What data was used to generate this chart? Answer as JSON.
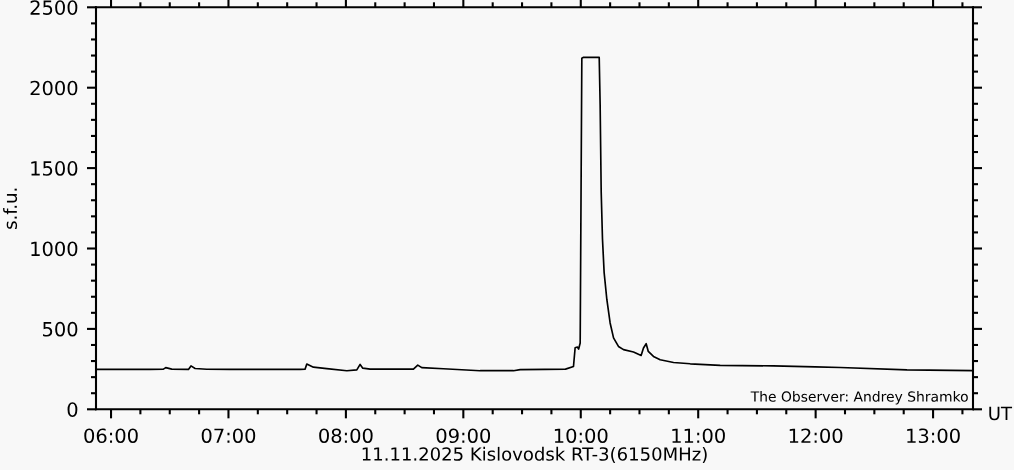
{
  "chart_data": {
    "type": "line",
    "xlabel": "11.11.2025 Kislovodsk RT-3(6150MHz)",
    "ylabel": "s.f.u.",
    "annotations": [
      "The Observer: Andrey Shramko",
      "UT"
    ],
    "x": [
      5.872,
      6.332,
      6.446,
      6.466,
      6.517,
      6.659,
      6.681,
      6.716,
      6.815,
      7.014,
      7.61,
      7.652,
      7.667,
      7.723,
      7.837,
      8.008,
      8.093,
      8.121,
      8.144,
      8.206,
      8.575,
      8.612,
      8.646,
      8.83,
      9.143,
      9.427,
      9.484,
      9.697,
      9.87,
      9.938,
      9.952,
      9.971,
      9.982,
      9.995,
      10.009,
      10.024,
      10.157,
      10.165,
      10.174,
      10.185,
      10.199,
      10.222,
      10.25,
      10.279,
      10.321,
      10.364,
      10.449,
      10.514,
      10.534,
      10.557,
      10.575,
      10.619,
      10.676,
      10.79,
      10.932,
      11.187,
      11.639,
      11.997,
      12.21,
      12.778,
      13.34
    ],
    "series": [
      {
        "color": "#000000",
        "values": [
          248,
          248,
          250,
          259,
          250,
          248,
          270,
          254,
          249,
          248,
          248,
          249,
          281,
          262,
          253,
          240,
          245,
          279,
          256,
          250,
          250,
          275,
          259,
          252,
          240,
          240,
          247,
          248,
          250,
          266,
          383,
          387,
          375,
          412,
          2183,
          2189,
          2189,
          1891,
          1350,
          1058,
          850,
          683,
          537,
          444,
          391,
          371,
          356,
          335,
          381,
          408,
          360,
          329,
          308,
          291,
          283,
          273,
          270,
          264,
          260,
          245,
          241
        ]
      }
    ],
    "xlim": [
      5.872,
      13.34
    ],
    "ylim": [
      0,
      2500
    ],
    "xticks": [
      {
        "value": 6,
        "label": "06:00"
      },
      {
        "value": 6.25,
        "label": null
      },
      {
        "value": 6.5,
        "label": null
      },
      {
        "value": 6.75,
        "label": null
      },
      {
        "value": 7,
        "label": "07:00"
      },
      {
        "value": 7.25,
        "label": null
      },
      {
        "value": 7.5,
        "label": null
      },
      {
        "value": 7.75,
        "label": null
      },
      {
        "value": 8,
        "label": "08:00"
      },
      {
        "value": 8.25,
        "label": null
      },
      {
        "value": 8.5,
        "label": null
      },
      {
        "value": 8.75,
        "label": null
      },
      {
        "value": 9,
        "label": "09:00"
      },
      {
        "value": 9.25,
        "label": null
      },
      {
        "value": 9.5,
        "label": null
      },
      {
        "value": 9.75,
        "label": null
      },
      {
        "value": 10,
        "label": "10:00"
      },
      {
        "value": 10.25,
        "label": null
      },
      {
        "value": 10.5,
        "label": null
      },
      {
        "value": 10.75,
        "label": null
      },
      {
        "value": 11,
        "label": "11:00"
      },
      {
        "value": 11.25,
        "label": null
      },
      {
        "value": 11.5,
        "label": null
      },
      {
        "value": 11.75,
        "label": null
      },
      {
        "value": 12,
        "label": "12:00"
      },
      {
        "value": 12.25,
        "label": null
      },
      {
        "value": 12.5,
        "label": null
      },
      {
        "value": 12.75,
        "label": null
      },
      {
        "value": 13,
        "label": "13:00"
      },
      {
        "value": 13.25,
        "label": null
      }
    ],
    "yticks": [
      0,
      {
        "value": 100,
        "label": null
      },
      {
        "value": 200,
        "label": null
      },
      {
        "value": 300,
        "label": null
      },
      {
        "value": 400,
        "label": null
      },
      500,
      {
        "value": 600,
        "label": null
      },
      {
        "value": 700,
        "label": null
      },
      {
        "value": 800,
        "label": null
      },
      {
        "value": 900,
        "label": null
      },
      1000,
      {
        "value": 1100,
        "label": null
      },
      {
        "value": 1200,
        "label": null
      },
      {
        "value": 1300,
        "label": null
      },
      {
        "value": 1400,
        "label": null
      },
      1500,
      {
        "value": 1600,
        "label": null
      },
      {
        "value": 1700,
        "label": null
      },
      {
        "value": 1800,
        "label": null
      },
      {
        "value": 1900,
        "label": null
      },
      2000,
      {
        "value": 2100,
        "label": null
      },
      {
        "value": 2200,
        "label": null
      },
      {
        "value": 2300,
        "label": null
      },
      {
        "value": 2400,
        "label": null
      },
      2500
    ],
    "line_style": "solid"
  }
}
